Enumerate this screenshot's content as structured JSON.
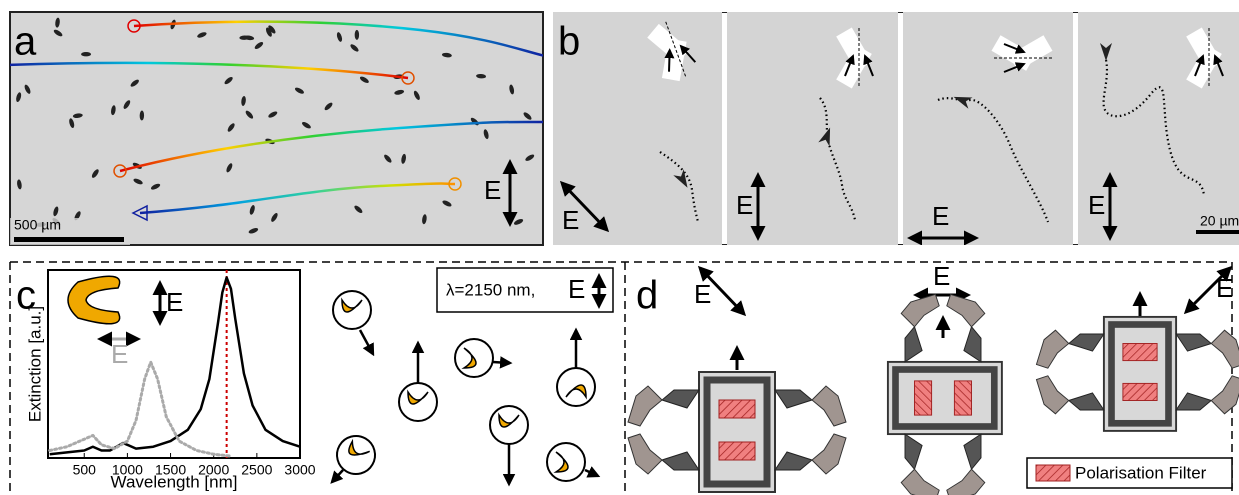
{
  "panel_a": {
    "label": "a",
    "scale_bar": "500 µm",
    "field": "E"
  },
  "panel_b": {
    "label": "b",
    "scale_bar": "20 µm",
    "fields": [
      "E",
      "E",
      "E",
      "E"
    ]
  },
  "panel_c": {
    "label": "c",
    "legend_field_black": "E",
    "legend_field_gray": "E",
    "condition": "λ=2150 nm,",
    "condition_field": "E",
    "chart_data": {
      "type": "line",
      "x_label": "Wavelength [nm]",
      "y_label": "Extinction [a.u.]",
      "xlim": [
        80,
        3000
      ],
      "ylim": [
        0,
        1
      ],
      "xticks": [
        500,
        1000,
        1500,
        2000,
        2500,
        3000
      ],
      "reference_line": 2150,
      "reference_color": "#cc0000",
      "series": [
        {
          "color": "#000000",
          "dash": false,
          "x": [
            100,
            300,
            500,
            600,
            700,
            800,
            950,
            1100,
            1300,
            1500,
            1700,
            1850,
            1950,
            2050,
            2100,
            2150,
            2200,
            2250,
            2350,
            2450,
            2600,
            2800,
            3000
          ],
          "values": [
            0.02,
            0.03,
            0.04,
            0.06,
            0.04,
            0.04,
            0.08,
            0.05,
            0.06,
            0.09,
            0.15,
            0.26,
            0.42,
            0.72,
            0.88,
            0.96,
            0.9,
            0.74,
            0.45,
            0.28,
            0.15,
            0.09,
            0.06
          ]
        },
        {
          "color": "#aaaaaa",
          "dash": true,
          "x": [
            100,
            300,
            500,
            600,
            700,
            850,
            1000,
            1100,
            1200,
            1270,
            1350,
            1450,
            1600,
            1800,
            2000,
            2200
          ],
          "values": [
            0.04,
            0.06,
            0.1,
            0.12,
            0.07,
            0.05,
            0.09,
            0.2,
            0.42,
            0.51,
            0.42,
            0.22,
            0.09,
            0.04,
            0.02,
            0.01
          ]
        }
      ]
    }
  },
  "panel_d": {
    "label": "d",
    "fields": [
      "E",
      "E",
      "E"
    ],
    "legend": "Polarisation Filter"
  }
}
